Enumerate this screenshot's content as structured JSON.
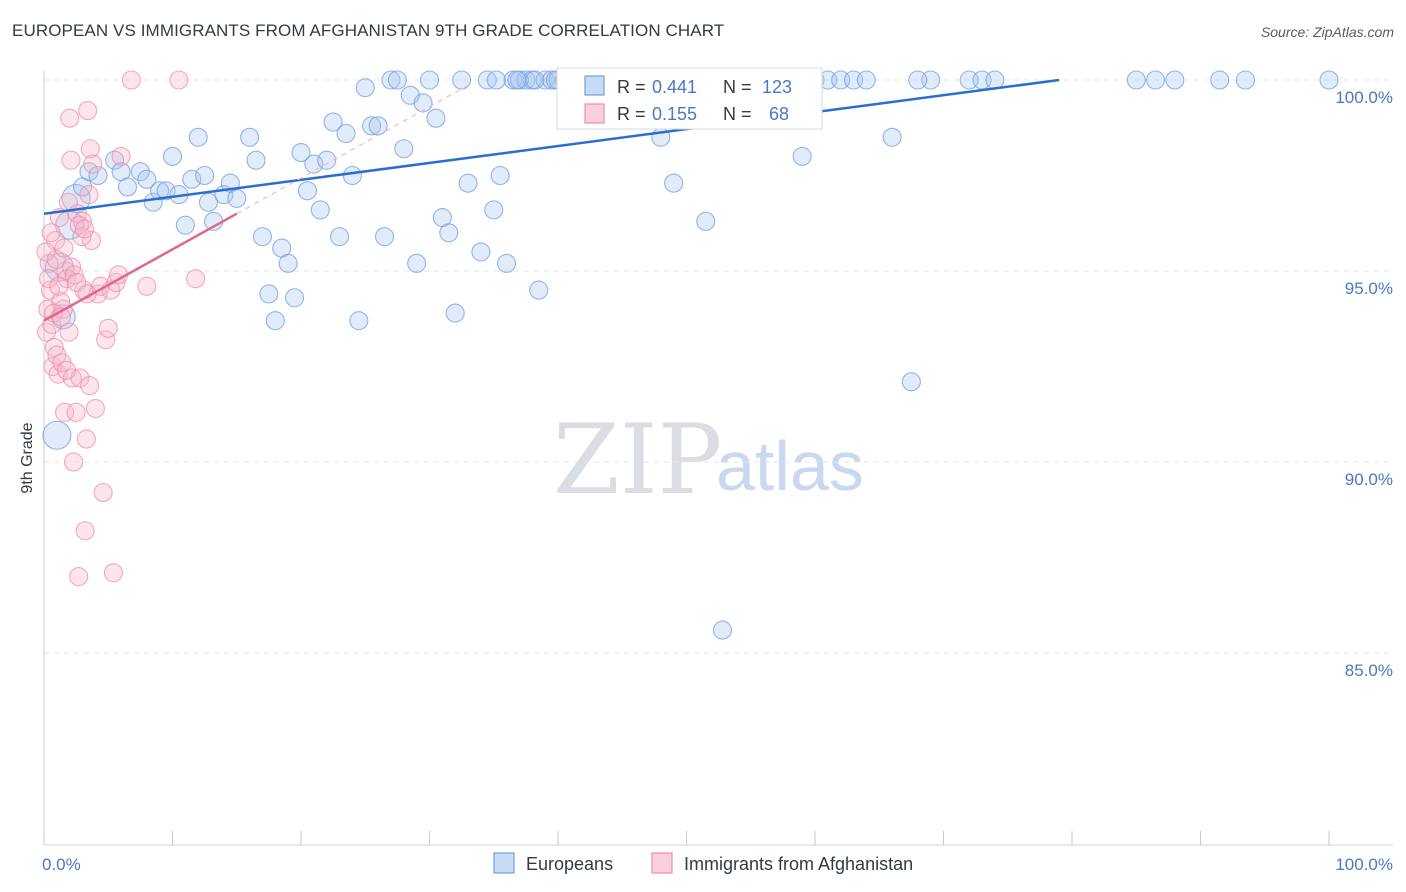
{
  "header": {
    "title": "EUROPEAN VS IMMIGRANTS FROM AFGHANISTAN 9TH GRADE CORRELATION CHART",
    "source": "Source: ZipAtlas.com"
  },
  "colors": {
    "blue": "#6f9fe0",
    "blue_line": "#2a6fd0",
    "pink": "#f08caa",
    "pink_line": "#e2658d",
    "text_blue": "#4a78c4"
  },
  "chart_data": {
    "type": "scatter",
    "title": "EUROPEAN VS IMMIGRANTS FROM AFGHANISTAN 9TH GRADE CORRELATION CHART",
    "xlabel": "",
    "ylabel": "9th Grade",
    "xlim": [
      0,
      100
    ],
    "ylim": [
      80.5,
      101
    ],
    "x_tick_labels": [
      "0.0%",
      "100.0%"
    ],
    "y_ticks": [
      100,
      95,
      90,
      85
    ],
    "y_tick_labels": [
      "100.0%",
      "95.0%",
      "90.0%",
      "85.0%"
    ],
    "grid": true,
    "legend_position": "top-center",
    "watermark": {
      "part1": "ZIP",
      "part2": "atlas"
    },
    "stats": [
      {
        "series": "Europeans",
        "r_label": "R =",
        "r": "0.441",
        "n_label": "N =",
        "n": "123"
      },
      {
        "series": "Immigrants from Afghanistan",
        "r_label": "R =",
        "r": "0.155",
        "n_label": "N =",
        "n": "68"
      }
    ],
    "series": [
      {
        "name": "Europeans",
        "color": "#6f9fe0",
        "trend": {
          "x0": 0,
          "y0": 96.5,
          "x1": 79,
          "y1": 100.0
        },
        "points": [
          [
            1.0,
            90.7
          ],
          [
            1.2,
            95.1
          ],
          [
            1.5,
            93.8
          ],
          [
            2.0,
            96.2
          ],
          [
            2.5,
            96.9
          ],
          [
            3.0,
            97.2
          ],
          [
            3.5,
            97.6
          ],
          [
            4.2,
            97.5
          ],
          [
            5.5,
            97.9
          ],
          [
            6.0,
            97.6
          ],
          [
            6.5,
            97.2
          ],
          [
            7.5,
            97.6
          ],
          [
            8.0,
            97.4
          ],
          [
            8.5,
            96.8
          ],
          [
            9.0,
            97.1
          ],
          [
            9.5,
            97.1
          ],
          [
            10.0,
            98.0
          ],
          [
            10.5,
            97.0
          ],
          [
            11.0,
            96.2
          ],
          [
            11.5,
            97.4
          ],
          [
            12.0,
            98.5
          ],
          [
            12.5,
            97.5
          ],
          [
            12.8,
            96.8
          ],
          [
            13.2,
            96.3
          ],
          [
            14.0,
            97.0
          ],
          [
            14.5,
            97.3
          ],
          [
            15.0,
            96.9
          ],
          [
            16.0,
            98.5
          ],
          [
            16.5,
            97.9
          ],
          [
            17.0,
            95.9
          ],
          [
            17.5,
            94.4
          ],
          [
            18.0,
            93.7
          ],
          [
            18.5,
            95.6
          ],
          [
            19.0,
            95.2
          ],
          [
            19.5,
            94.3
          ],
          [
            20.0,
            98.1
          ],
          [
            20.5,
            97.1
          ],
          [
            21.0,
            97.8
          ],
          [
            21.5,
            96.6
          ],
          [
            22.0,
            97.9
          ],
          [
            22.5,
            98.9
          ],
          [
            23.0,
            95.9
          ],
          [
            23.5,
            98.6
          ],
          [
            24.0,
            97.5
          ],
          [
            24.5,
            93.7
          ],
          [
            25.0,
            99.8
          ],
          [
            25.5,
            98.8
          ],
          [
            26.0,
            98.8
          ],
          [
            26.5,
            95.9
          ],
          [
            27.0,
            100.0
          ],
          [
            27.5,
            100.0
          ],
          [
            28.0,
            98.2
          ],
          [
            28.5,
            99.6
          ],
          [
            29.0,
            95.2
          ],
          [
            29.5,
            99.4
          ],
          [
            30.0,
            100.0
          ],
          [
            30.5,
            99.0
          ],
          [
            31.0,
            96.4
          ],
          [
            31.5,
            96.0
          ],
          [
            32.0,
            93.9
          ],
          [
            32.5,
            100.0
          ],
          [
            33.0,
            97.3
          ],
          [
            34.0,
            95.5
          ],
          [
            34.5,
            100.0
          ],
          [
            35.0,
            96.6
          ],
          [
            35.5,
            97.5
          ],
          [
            36.0,
            95.2
          ],
          [
            36.5,
            100.0
          ],
          [
            37.0,
            100.0
          ],
          [
            37.5,
            100.0
          ],
          [
            38.0,
            100.0
          ],
          [
            38.5,
            94.5
          ],
          [
            39.0,
            100.0
          ],
          [
            39.5,
            100.0
          ],
          [
            40.0,
            100.0
          ],
          [
            40.5,
            100.0
          ],
          [
            41.0,
            100.0
          ],
          [
            42.0,
            100.0
          ],
          [
            43.0,
            100.0
          ],
          [
            44.0,
            100.0
          ],
          [
            45.0,
            100.0
          ],
          [
            46.0,
            100.0
          ],
          [
            47.0,
            100.0
          ],
          [
            48.0,
            98.5
          ],
          [
            48.5,
            100.0
          ],
          [
            49.0,
            97.3
          ],
          [
            50.0,
            100.0
          ],
          [
            51.0,
            100.0
          ],
          [
            52.0,
            100.0
          ],
          [
            53.0,
            100.0
          ],
          [
            52.8,
            85.6
          ],
          [
            54.0,
            100.0
          ],
          [
            55.0,
            100.0
          ],
          [
            56.0,
            100.0
          ],
          [
            57.0,
            100.0
          ],
          [
            58.0,
            99.2
          ],
          [
            58.5,
            100.0
          ],
          [
            59.0,
            98.0
          ],
          [
            60.0,
            100.0
          ],
          [
            61.0,
            100.0
          ],
          [
            62.0,
            100.0
          ],
          [
            63.0,
            100.0
          ],
          [
            64.0,
            100.0
          ],
          [
            66.0,
            98.5
          ],
          [
            67.5,
            92.1
          ],
          [
            69.0,
            100.0
          ],
          [
            72.0,
            100.0
          ],
          [
            73.0,
            100.0
          ],
          [
            74.0,
            100.0
          ],
          [
            85.0,
            100.0
          ],
          [
            86.5,
            100.0
          ],
          [
            88.0,
            100.0
          ],
          [
            91.5,
            100.0
          ],
          [
            93.5,
            100.0
          ],
          [
            100.0,
            100.0
          ],
          [
            51.5,
            96.3
          ],
          [
            40.8,
            100.0
          ],
          [
            39.8,
            100.0
          ],
          [
            38.2,
            100.0
          ],
          [
            36.8,
            100.0
          ],
          [
            35.2,
            100.0
          ],
          [
            46.5,
            100.0
          ],
          [
            68.0,
            100.0
          ]
        ]
      },
      {
        "name": "Immigrants from Afghanistan",
        "color": "#f08caa",
        "trend": {
          "x0": 0,
          "y0": 93.7,
          "x1": 15,
          "y1": 96.5
        },
        "points": [
          [
            0.2,
            93.4
          ],
          [
            0.3,
            94.0
          ],
          [
            0.4,
            95.2
          ],
          [
            0.5,
            94.5
          ],
          [
            0.6,
            93.6
          ],
          [
            0.7,
            92.5
          ],
          [
            0.8,
            93.0
          ],
          [
            0.9,
            95.8
          ],
          [
            1.0,
            92.8
          ],
          [
            1.1,
            92.3
          ],
          [
            1.2,
            96.4
          ],
          [
            1.3,
            94.2
          ],
          [
            1.4,
            92.6
          ],
          [
            1.5,
            94.0
          ],
          [
            1.6,
            91.3
          ],
          [
            1.7,
            95.0
          ],
          [
            1.8,
            94.8
          ],
          [
            1.9,
            96.8
          ],
          [
            2.0,
            99.0
          ],
          [
            2.1,
            97.9
          ],
          [
            2.2,
            92.2
          ],
          [
            2.3,
            90.0
          ],
          [
            2.5,
            91.3
          ],
          [
            2.6,
            96.5
          ],
          [
            2.7,
            87.0
          ],
          [
            2.8,
            92.2
          ],
          [
            3.0,
            96.3
          ],
          [
            3.1,
            94.5
          ],
          [
            3.2,
            88.2
          ],
          [
            3.3,
            90.6
          ],
          [
            3.4,
            99.2
          ],
          [
            3.5,
            97.0
          ],
          [
            3.6,
            98.2
          ],
          [
            3.7,
            95.8
          ],
          [
            3.8,
            97.8
          ],
          [
            4.0,
            91.4
          ],
          [
            4.2,
            94.4
          ],
          [
            4.4,
            94.6
          ],
          [
            4.6,
            89.2
          ],
          [
            4.8,
            93.2
          ],
          [
            5.0,
            93.5
          ],
          [
            5.2,
            94.5
          ],
          [
            5.4,
            87.1
          ],
          [
            5.6,
            94.7
          ],
          [
            5.8,
            94.9
          ],
          [
            6.0,
            98.0
          ],
          [
            6.8,
            100.0
          ],
          [
            8.0,
            94.6
          ],
          [
            10.5,
            100.0
          ],
          [
            11.8,
            94.8
          ],
          [
            0.15,
            95.5
          ],
          [
            0.35,
            94.8
          ],
          [
            0.55,
            96.0
          ],
          [
            0.75,
            93.9
          ],
          [
            0.95,
            95.3
          ],
          [
            1.15,
            94.6
          ],
          [
            1.35,
            93.8
          ],
          [
            1.55,
            95.6
          ],
          [
            1.75,
            92.4
          ],
          [
            1.95,
            93.4
          ],
          [
            2.15,
            95.1
          ],
          [
            2.35,
            94.9
          ],
          [
            2.55,
            94.7
          ],
          [
            2.75,
            96.2
          ],
          [
            2.95,
            95.9
          ],
          [
            3.15,
            96.1
          ],
          [
            3.35,
            94.4
          ],
          [
            3.55,
            92.0
          ]
        ]
      }
    ]
  },
  "legend": {
    "items": [
      {
        "label": "Europeans",
        "color": "#6f9fe0"
      },
      {
        "label": "Immigrants from Afghanistan",
        "color": "#f08caa"
      }
    ]
  }
}
